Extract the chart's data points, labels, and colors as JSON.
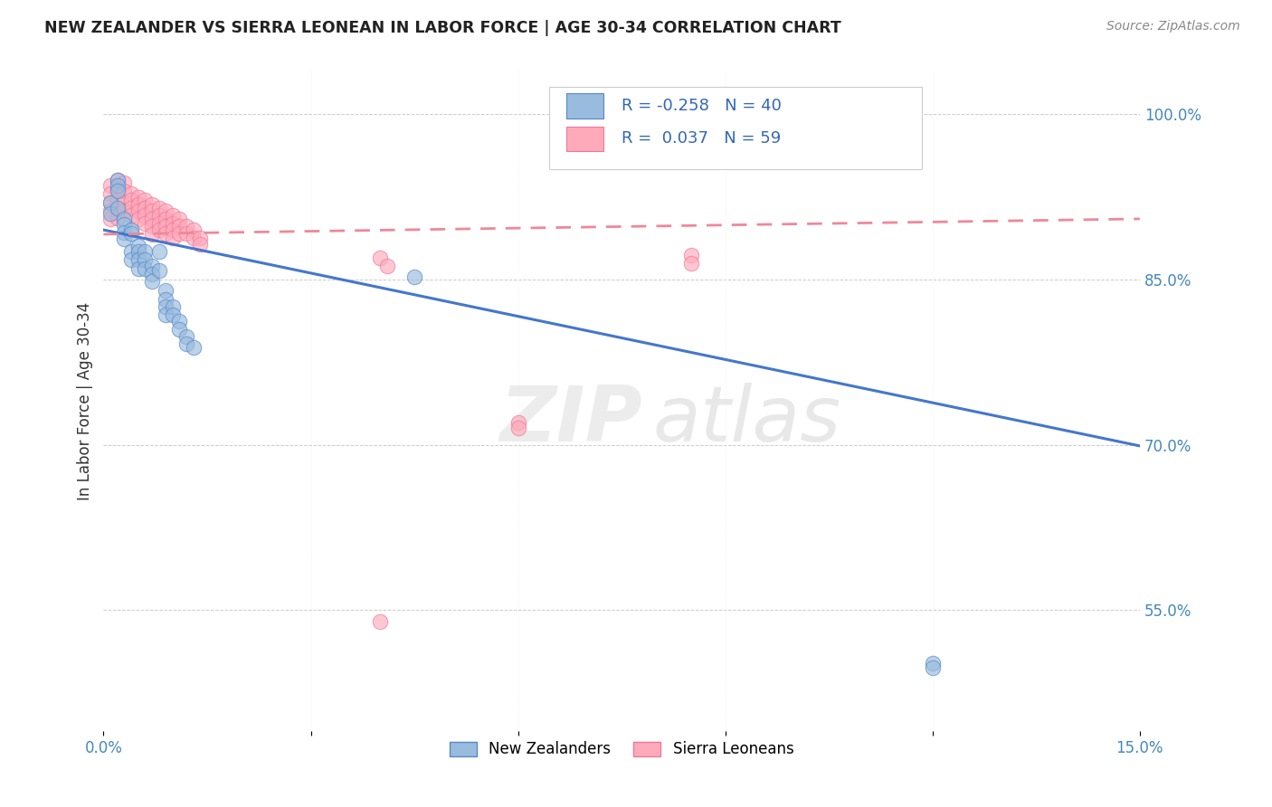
{
  "title": "NEW ZEALANDER VS SIERRA LEONEAN IN LABOR FORCE | AGE 30-34 CORRELATION CHART",
  "source": "Source: ZipAtlas.com",
  "ylabel": "In Labor Force | Age 30-34",
  "blue_label": "New Zealanders",
  "pink_label": "Sierra Leoneans",
  "blue_R": "-0.258",
  "blue_N": "40",
  "pink_R": "0.037",
  "pink_N": "59",
  "blue_color": "#99BBDD",
  "pink_color": "#FFAABB",
  "blue_edge_color": "#5588CC",
  "pink_edge_color": "#EE7799",
  "blue_line_color": "#4477CC",
  "pink_line_color": "#EE8899",
  "watermark_zip": "ZIP",
  "watermark_atlas": "atlas",
  "xlim": [
    0.0,
    0.15
  ],
  "ylim": [
    0.44,
    1.04
  ],
  "blue_line_x0": 0.0,
  "blue_line_y0": 0.895,
  "blue_line_x1": 0.15,
  "blue_line_y1": 0.699,
  "pink_line_x0": 0.0,
  "pink_line_y0": 0.891,
  "pink_line_x1": 0.15,
  "pink_line_y1": 0.905,
  "blue_x": [
    0.001,
    0.001,
    0.002,
    0.002,
    0.002,
    0.002,
    0.003,
    0.003,
    0.003,
    0.003,
    0.004,
    0.004,
    0.004,
    0.004,
    0.005,
    0.005,
    0.005,
    0.005,
    0.006,
    0.006,
    0.006,
    0.007,
    0.007,
    0.007,
    0.008,
    0.008,
    0.009,
    0.009,
    0.009,
    0.009,
    0.01,
    0.01,
    0.011,
    0.011,
    0.012,
    0.012,
    0.013,
    0.045,
    0.12,
    0.12
  ],
  "blue_y": [
    0.92,
    0.91,
    0.94,
    0.935,
    0.93,
    0.915,
    0.905,
    0.9,
    0.893,
    0.887,
    0.895,
    0.892,
    0.875,
    0.868,
    0.88,
    0.875,
    0.868,
    0.86,
    0.875,
    0.868,
    0.86,
    0.862,
    0.855,
    0.848,
    0.875,
    0.858,
    0.84,
    0.832,
    0.825,
    0.818,
    0.825,
    0.818,
    0.812,
    0.805,
    0.798,
    0.792,
    0.788,
    0.852,
    0.502,
    0.498
  ],
  "pink_x": [
    0.001,
    0.001,
    0.001,
    0.001,
    0.001,
    0.002,
    0.002,
    0.002,
    0.002,
    0.002,
    0.003,
    0.003,
    0.003,
    0.003,
    0.004,
    0.004,
    0.004,
    0.004,
    0.005,
    0.005,
    0.005,
    0.005,
    0.006,
    0.006,
    0.006,
    0.006,
    0.007,
    0.007,
    0.007,
    0.007,
    0.007,
    0.008,
    0.008,
    0.008,
    0.008,
    0.009,
    0.009,
    0.009,
    0.009,
    0.01,
    0.01,
    0.01,
    0.01,
    0.011,
    0.011,
    0.011,
    0.012,
    0.012,
    0.013,
    0.013,
    0.014,
    0.014,
    0.06,
    0.06,
    0.085,
    0.085,
    0.04,
    0.041,
    0.04
  ],
  "pink_y": [
    0.935,
    0.928,
    0.92,
    0.912,
    0.905,
    0.94,
    0.932,
    0.922,
    0.914,
    0.906,
    0.938,
    0.93,
    0.92,
    0.912,
    0.928,
    0.922,
    0.915,
    0.908,
    0.925,
    0.918,
    0.912,
    0.905,
    0.922,
    0.915,
    0.908,
    0.901,
    0.918,
    0.912,
    0.905,
    0.898,
    0.891,
    0.915,
    0.908,
    0.901,
    0.895,
    0.912,
    0.905,
    0.898,
    0.892,
    0.908,
    0.901,
    0.895,
    0.888,
    0.905,
    0.898,
    0.892,
    0.898,
    0.892,
    0.895,
    0.888,
    0.888,
    0.882,
    0.72,
    0.715,
    0.872,
    0.865,
    0.87,
    0.862,
    0.54
  ]
}
